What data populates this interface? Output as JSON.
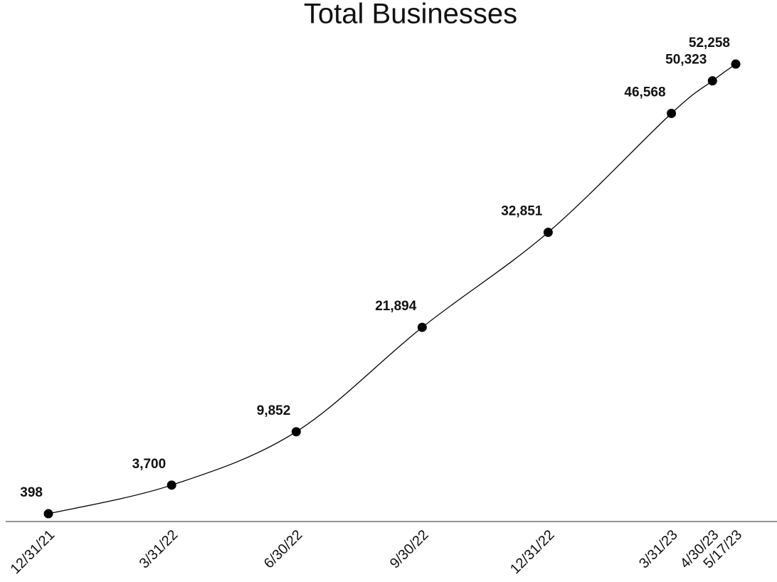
{
  "chart_data": {
    "type": "line",
    "title": "Total Businesses",
    "x": [
      "12/31/21",
      "3/31/22",
      "6/30/22",
      "9/30/22",
      "12/31/22",
      "3/31/23",
      "4/30/23",
      "5/17/23"
    ],
    "values": [
      398,
      3700,
      9852,
      21894,
      32851,
      46568,
      50323,
      52258
    ],
    "value_labels": [
      "398",
      "3,700",
      "9,852",
      "21,894",
      "32,851",
      "46,568",
      "50,323",
      "52,258"
    ],
    "color": "#000000",
    "ylim": [
      -500,
      53000
    ]
  }
}
